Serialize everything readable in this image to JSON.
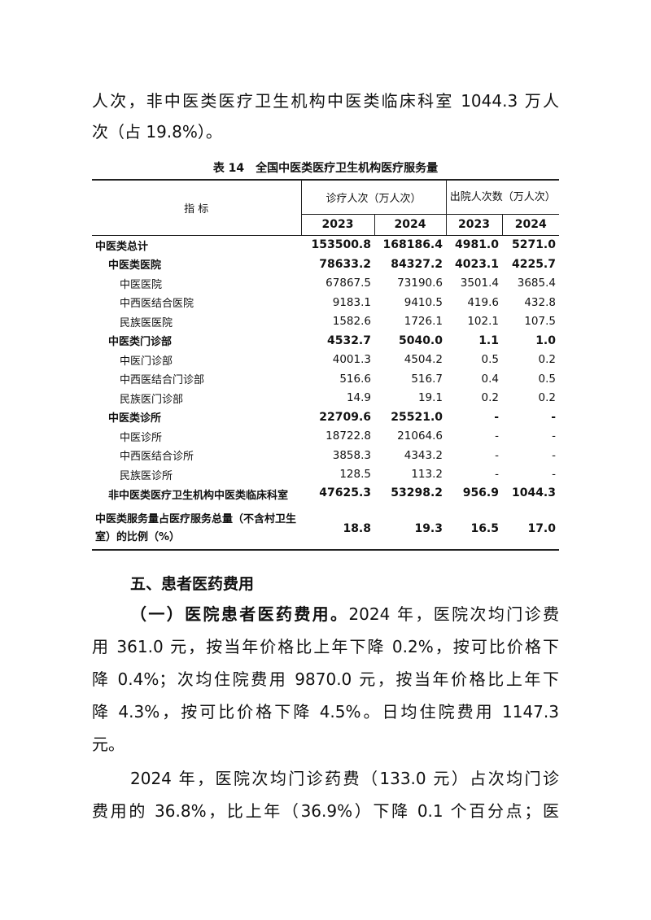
{
  "intro_lines": [
    "人次，非中医类医疗卫生机构中医类临床科室 1044.3 万人",
    "次（占 19.8%）。"
  ],
  "table": {
    "caption": "表 14　全国中医类医疗卫生机构医疗服务量",
    "header_indicator": "指 标",
    "header_visits": "诊疗人次（万人次）",
    "header_discharges": "出院人次数（万人次）",
    "years": [
      "2023",
      "2024",
      "2023",
      "2024"
    ],
    "rows": [
      {
        "label": "中医类总计",
        "values": [
          "153500.8",
          "168186.4",
          "4981.0",
          "5271.0"
        ]
      },
      {
        "label": "中医类医院",
        "values": [
          "78633.2",
          "84327.2",
          "4023.1",
          "4225.7"
        ]
      },
      {
        "label": "中医医院",
        "values": [
          "67867.5",
          "73190.6",
          "3501.4",
          "3685.4"
        ]
      },
      {
        "label": "中西医结合医院",
        "values": [
          "9183.1",
          "9410.5",
          "419.6",
          "432.8"
        ]
      },
      {
        "label": "民族医医院",
        "values": [
          "1582.6",
          "1726.1",
          "102.1",
          "107.5"
        ]
      },
      {
        "label": "中医类门诊部",
        "values": [
          "4532.7",
          "5040.0",
          "1.1",
          "1.0"
        ]
      },
      {
        "label": "中医门诊部",
        "values": [
          "4001.3",
          "4504.2",
          "0.5",
          "0.2"
        ]
      },
      {
        "label": "中西医结合门诊部",
        "values": [
          "516.6",
          "516.7",
          "0.4",
          "0.5"
        ]
      },
      {
        "label": "民族医门诊部",
        "values": [
          "14.9",
          "19.1",
          "0.2",
          "0.2"
        ]
      },
      {
        "label": "中医类诊所",
        "values": [
          "22709.6",
          "25521.0",
          "-",
          "-"
        ]
      },
      {
        "label": "中医诊所",
        "values": [
          "18722.8",
          "21064.6",
          "-",
          "-"
        ]
      },
      {
        "label": "中西医结合诊所",
        "values": [
          "3858.3",
          "4343.2",
          "-",
          "-"
        ]
      },
      {
        "label": "民族医诊所",
        "values": [
          "128.5",
          "113.2",
          "-",
          "-"
        ]
      },
      {
        "label": "非中医类医疗卫生机构中医类临床科室",
        "values": [
          "47625.3",
          "53298.2",
          "956.9",
          "1044.3"
        ]
      },
      {
        "label": "中医类服务量占医疗服务总量（不含村卫生室）的比例（%）",
        "values": [
          "18.8",
          "19.3",
          "16.5",
          "17.0"
        ]
      }
    ]
  },
  "section_heading": "五、患者医药费用",
  "para1_lead": "（一）医院患者医药费用。",
  "para1_lines": [
    "2024 年，医院次均门诊费",
    "用 361.0 元，按当年价格比上年下降 0.2%，按可比价格下",
    "降 0.4%；次均住院费用 9870.0 元，按当年价格比上年下",
    "降 4.3%，按可比价格下降 4.5%。日均住院费用 1147.3",
    "元。"
  ],
  "para2_lines": [
    "2024 年，医院次均门诊药费（133.0 元）占次均门诊",
    "费用的 36.8%，比上年（36.9%）下降 0.1 个百分点；医"
  ]
}
